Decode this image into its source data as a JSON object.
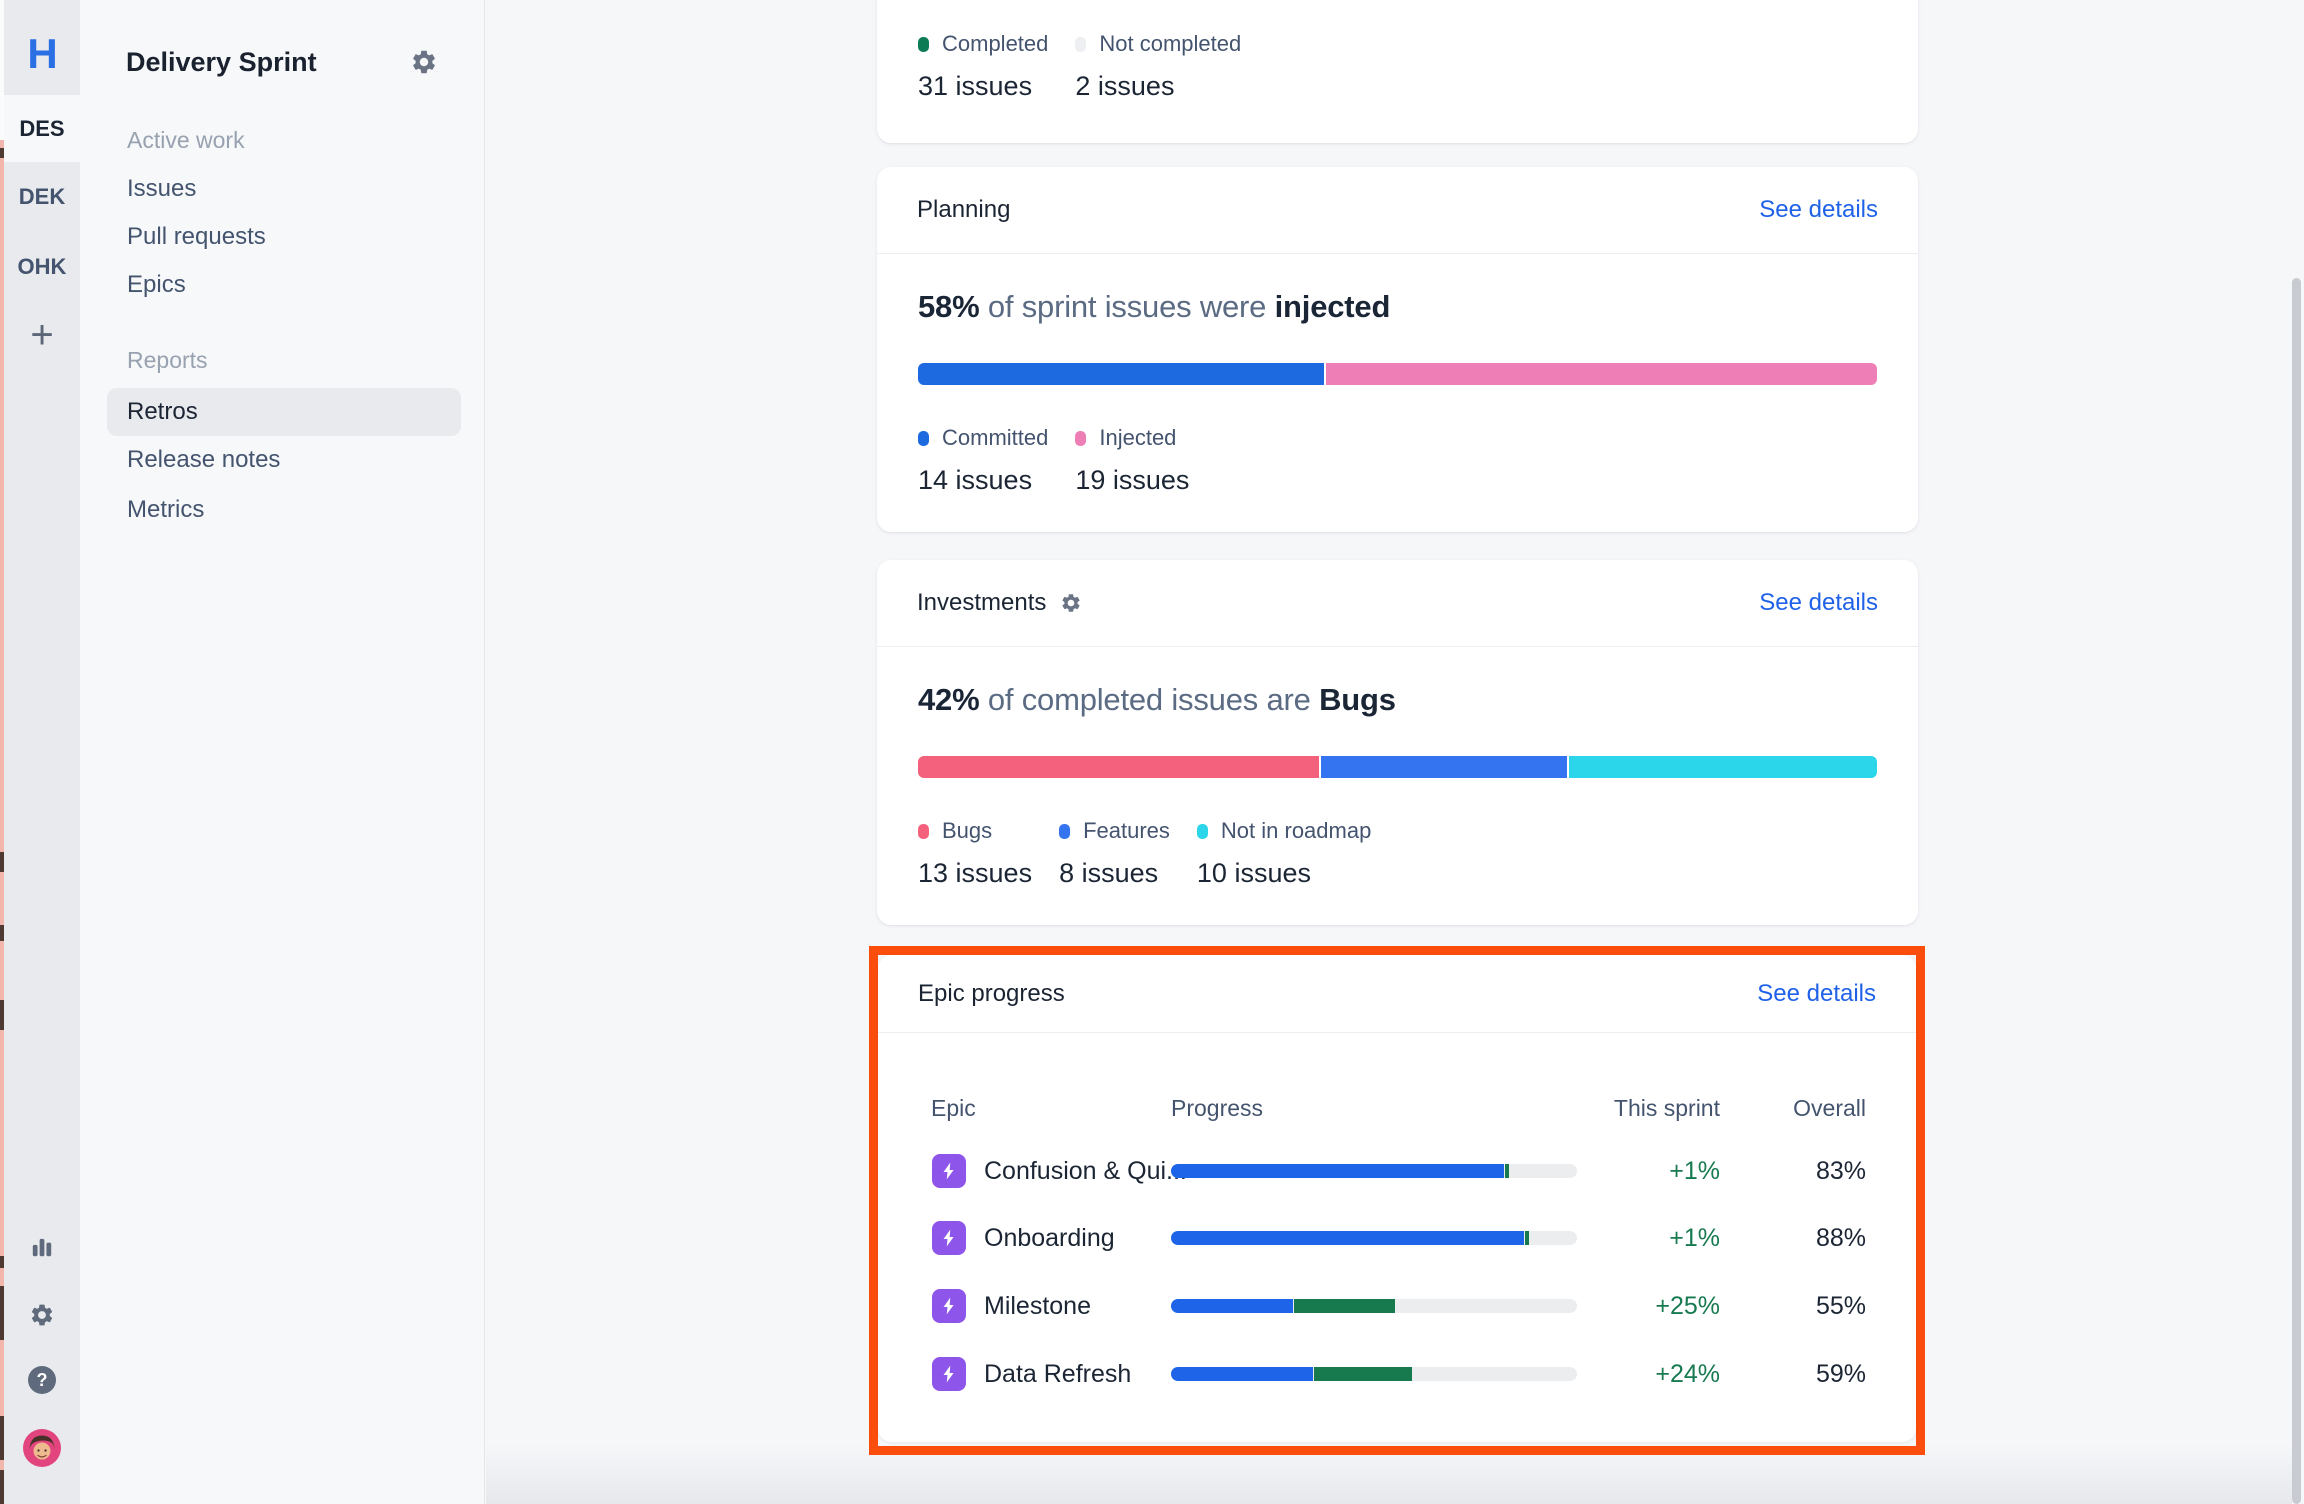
{
  "icons": {
    "logo_glyph": "H",
    "add_glyph": "+",
    "help_glyph": "?"
  },
  "colors": {
    "brand_blue": "#2b6fe4",
    "link_blue": "#1f62e8",
    "committed_blue": "#1d6ae0",
    "injected_pink": "#ee7fb6",
    "bugs_coral": "#f4617d",
    "features_blue": "#3574f0",
    "roadmap_cyan": "#2bd5ea",
    "completed_green": "#0d7c55",
    "not_completed_gray": "#edeff2",
    "progress_blue": "#1d64e8",
    "progress_green": "#177a4f",
    "sprint_green_text": "#177a50",
    "epic_purple": "#8e55ea",
    "highlight_orange": "#fb4d0c"
  },
  "rail": {
    "projects": [
      {
        "code": "DES"
      },
      {
        "code": "DEK"
      },
      {
        "code": "OHK"
      }
    ]
  },
  "sidebar": {
    "title": "Delivery Sprint",
    "sections": [
      {
        "label": "Active work",
        "items": [
          {
            "label": "Issues"
          },
          {
            "label": "Pull requests"
          },
          {
            "label": "Epics"
          }
        ]
      },
      {
        "label": "Reports",
        "items": [
          {
            "label": "Retros"
          },
          {
            "label": "Release notes"
          },
          {
            "label": "Metrics"
          }
        ]
      }
    ]
  },
  "cards": {
    "completion": {
      "legend": [
        {
          "label": "Completed",
          "value": "31 issues",
          "color": "#0d7c55"
        },
        {
          "label": "Not completed",
          "value": "2 issues",
          "color": "#edeff2"
        }
      ]
    },
    "planning": {
      "title": "Planning",
      "link": "See details",
      "stat": {
        "lead": "58%",
        "mid": " of sprint issues were ",
        "tail": "injected"
      },
      "bar": [
        {
          "color": "#1d6ae0",
          "pct": 42.4
        },
        {
          "color": "#ee7fb6",
          "pct": 57.6
        }
      ],
      "legend": [
        {
          "label": "Committed",
          "value": "14 issues",
          "color": "#1d6ae0"
        },
        {
          "label": "Injected",
          "value": "19 issues",
          "color": "#ee7fb6"
        }
      ]
    },
    "investments": {
      "title": "Investments",
      "link": "See details",
      "stat": {
        "lead": "42%",
        "mid": " of completed issues are ",
        "tail": "Bugs"
      },
      "bar": [
        {
          "color": "#f4617d",
          "pct": 42.0
        },
        {
          "color": "#3574f0",
          "pct": 25.8
        },
        {
          "color": "#2bd5ea",
          "pct": 32.2
        }
      ],
      "legend": [
        {
          "label": "Bugs",
          "value": "13 issues",
          "color": "#f4617d"
        },
        {
          "label": "Features",
          "value": "8 issues",
          "color": "#3574f0"
        },
        {
          "label": "Not in roadmap",
          "value": "10 issues",
          "color": "#2bd5ea"
        }
      ]
    },
    "epic_progress": {
      "title": "Epic progress",
      "link": "See details",
      "columns": {
        "epic": "Epic",
        "progress": "Progress",
        "sprint": "This sprint",
        "overall": "Overall"
      },
      "rows": [
        {
          "name": "Confusion & Qui...",
          "done_pct": 82,
          "sprint_pct": 1,
          "sprint": "+1%",
          "overall": "83%"
        },
        {
          "name": "Onboarding",
          "done_pct": 87,
          "sprint_pct": 1,
          "sprint": "+1%",
          "overall": "88%"
        },
        {
          "name": "Milestone",
          "done_pct": 30,
          "sprint_pct": 25,
          "sprint": "+25%",
          "overall": "55%"
        },
        {
          "name": "Data Refresh",
          "done_pct": 35,
          "sprint_pct": 24,
          "sprint": "+24%",
          "overall": "59%"
        }
      ]
    }
  }
}
